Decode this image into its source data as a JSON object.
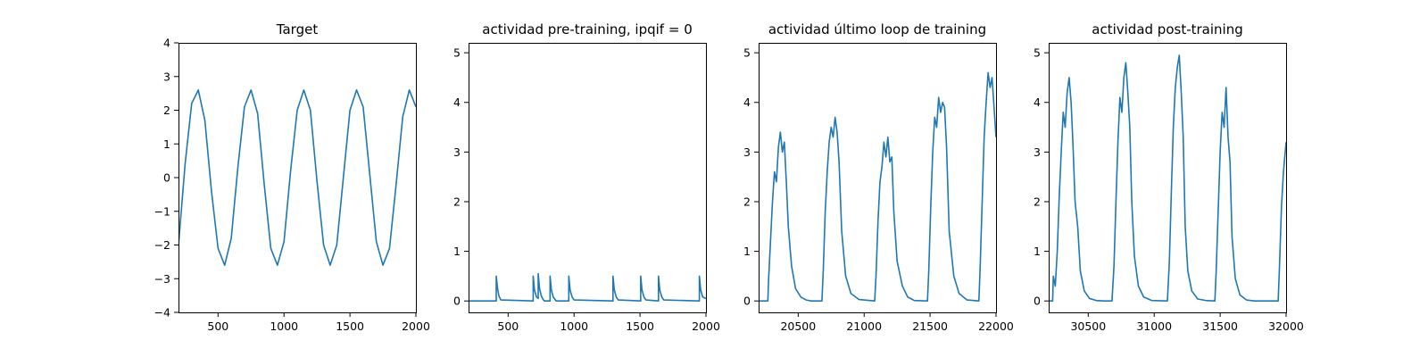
{
  "chart_data": [
    {
      "type": "line",
      "title": "Target",
      "xlabel": "",
      "ylabel": "",
      "xlim": [
        200,
        2000
      ],
      "ylim": [
        -4,
        4
      ],
      "xticks": [
        500,
        1000,
        1500,
        2000
      ],
      "xtick_labels": [
        "500",
        "1000",
        "1500",
        "2000"
      ],
      "yticks": [
        -4,
        -3,
        -2,
        -1,
        0,
        1,
        2,
        3,
        4
      ],
      "ytick_labels": [
        "−4",
        "−3",
        "−2",
        "−1",
        "0",
        "1",
        "2",
        "3",
        "4"
      ],
      "grid": false,
      "series": [
        {
          "x": [
            200,
            250,
            300,
            350,
            400,
            450,
            500,
            550,
            600,
            650,
            700,
            750,
            800,
            850,
            900,
            950,
            1000,
            1050,
            1100,
            1150,
            1200,
            1250,
            1300,
            1350,
            1400,
            1450,
            1500,
            1550,
            1600,
            1650,
            1700,
            1750,
            1800,
            1850,
            1900,
            1950,
            2000
          ],
          "y": [
            -2.0,
            0.4,
            2.2,
            2.6,
            1.7,
            -0.4,
            -2.1,
            -2.6,
            -1.8,
            0.3,
            2.1,
            2.6,
            1.9,
            -0.2,
            -2.1,
            -2.6,
            -1.9,
            0.2,
            2.0,
            2.6,
            2.0,
            -0.1,
            -2.0,
            -2.6,
            -2.0,
            0.0,
            2.0,
            2.6,
            2.1,
            0.1,
            -1.9,
            -2.6,
            -2.1,
            -0.2,
            1.8,
            2.6,
            2.1
          ]
        }
      ]
    },
    {
      "type": "line",
      "title": "actividad pre-training, ipqif = 0",
      "xlabel": "",
      "ylabel": "",
      "xlim": [
        200,
        2000
      ],
      "ylim": [
        -0.23,
        5.2
      ],
      "xticks": [
        500,
        1000,
        1500,
        2000
      ],
      "xtick_labels": [
        "500",
        "1000",
        "1500",
        "2000"
      ],
      "yticks": [
        0,
        1,
        2,
        3,
        4,
        5
      ],
      "ytick_labels": [
        "0",
        "1",
        "2",
        "3",
        "4",
        "5"
      ],
      "grid": false,
      "series": [
        {
          "x": [
            200,
            410,
            410,
            420,
            430,
            445,
            690,
            690,
            700,
            715,
            728,
            728,
            738,
            752,
            765,
            775,
            818,
            818,
            828,
            842,
            855,
            865,
            960,
            960,
            970,
            985,
            1000,
            1295,
            1295,
            1305,
            1320,
            1335,
            1505,
            1505,
            1515,
            1530,
            1545,
            1640,
            1640,
            1650,
            1665,
            1680,
            1950,
            1950,
            1960,
            1975,
            2000
          ],
          "y": [
            0,
            0,
            0.5,
            0.25,
            0.1,
            0.02,
            0,
            0.5,
            0.22,
            0.08,
            0.05,
            0.55,
            0.25,
            0.1,
            0.03,
            0,
            0,
            0.5,
            0.22,
            0.08,
            0.03,
            0,
            0,
            0.5,
            0.22,
            0.08,
            0.02,
            0,
            0.5,
            0.22,
            0.08,
            0.02,
            0,
            0.5,
            0.22,
            0.08,
            0.02,
            0,
            0.5,
            0.22,
            0.08,
            0.02,
            0,
            0.5,
            0.22,
            0.08,
            0.05
          ]
        }
      ]
    },
    {
      "type": "line",
      "title": "actividad último loop de training",
      "xlabel": "",
      "ylabel": "",
      "xlim": [
        20200,
        22000
      ],
      "ylim": [
        -0.23,
        5.2
      ],
      "xticks": [
        20500,
        21000,
        21500,
        22000
      ],
      "xtick_labels": [
        "20500",
        "21000",
        "21500",
        "22000"
      ],
      "yticks": [
        0,
        1,
        2,
        3,
        4,
        5
      ],
      "ytick_labels": [
        "0",
        "1",
        "2",
        "3",
        "4",
        "5"
      ],
      "grid": false,
      "series": [
        {
          "x": [
            20200,
            20270,
            20275,
            20290,
            20305,
            20320,
            20335,
            20350,
            20365,
            20380,
            20395,
            20410,
            20425,
            20450,
            20480,
            20520,
            20560,
            20600,
            20680,
            20690,
            20705,
            20720,
            20735,
            20750,
            20765,
            20780,
            20795,
            20810,
            20830,
            20860,
            20900,
            20960,
            21080,
            21090,
            21105,
            21120,
            21135,
            21150,
            21165,
            21180,
            21195,
            21210,
            21225,
            21250,
            21290,
            21330,
            21380,
            21480,
            21490,
            21505,
            21520,
            21535,
            21550,
            21565,
            21580,
            21595,
            21610,
            21625,
            21645,
            21680,
            21720,
            21780,
            21870,
            21880,
            21895,
            21910,
            21925,
            21940,
            21955,
            21970,
            21985,
            22000
          ],
          "y": [
            0,
            0,
            0.4,
            1.2,
            2.0,
            2.6,
            2.4,
            3.1,
            3.4,
            3.0,
            3.2,
            2.4,
            1.5,
            0.7,
            0.25,
            0.08,
            0.02,
            0,
            0,
            0.6,
            1.8,
            2.6,
            3.2,
            3.5,
            3.3,
            3.7,
            3.4,
            2.8,
            1.4,
            0.5,
            0.15,
            0.03,
            0,
            0.5,
            1.6,
            2.4,
            2.7,
            3.2,
            2.9,
            3.3,
            2.8,
            2.9,
            1.8,
            0.8,
            0.3,
            0.08,
            0.01,
            0,
            0.6,
            1.9,
            3.0,
            3.7,
            3.5,
            4.1,
            3.8,
            4.0,
            3.9,
            3.1,
            1.4,
            0.5,
            0.15,
            0.02,
            0,
            0.7,
            2.0,
            3.3,
            4.0,
            4.6,
            4.3,
            4.5,
            3.9,
            3.3
          ]
        }
      ]
    },
    {
      "type": "line",
      "title": "actividad post-training",
      "xlabel": "",
      "ylabel": "",
      "xlim": [
        30200,
        32000
      ],
      "ylim": [
        -0.23,
        5.2
      ],
      "xticks": [
        30500,
        31000,
        31500,
        32000
      ],
      "xtick_labels": [
        "30500",
        "31000",
        "31500",
        "32000"
      ],
      "yticks": [
        0,
        1,
        2,
        3,
        4,
        5
      ],
      "ytick_labels": [
        "0",
        "1",
        "2",
        "3",
        "4",
        "5"
      ],
      "grid": false,
      "series": [
        {
          "x": [
            30200,
            30230,
            30235,
            30250,
            30265,
            30280,
            30295,
            30310,
            30325,
            30340,
            30355,
            30370,
            30385,
            30400,
            30420,
            30440,
            30470,
            30510,
            30560,
            30620,
            30680,
            30695,
            30710,
            30725,
            30740,
            30755,
            30770,
            30785,
            30800,
            30815,
            30830,
            30850,
            30880,
            30920,
            30980,
            31100,
            31115,
            31130,
            31145,
            31160,
            31175,
            31190,
            31205,
            31220,
            31235,
            31255,
            31285,
            31330,
            31390,
            31460,
            31470,
            31485,
            31500,
            31515,
            31530,
            31545,
            31560,
            31575,
            31590,
            31615,
            31650,
            31700,
            31760,
            31940,
            31950,
            31965,
            31980,
            32000
          ],
          "y": [
            0,
            0,
            0.5,
            0.3,
            1.0,
            2.1,
            3.0,
            3.8,
            3.5,
            4.2,
            4.5,
            4.0,
            3.1,
            2.0,
            1.5,
            0.6,
            0.2,
            0.05,
            0.01,
            0,
            0,
            0.7,
            2.0,
            3.2,
            4.1,
            3.8,
            4.5,
            4.8,
            4.2,
            3.5,
            2.0,
            0.9,
            0.3,
            0.08,
            0.01,
            0,
            0.8,
            2.2,
            3.5,
            4.3,
            4.7,
            4.95,
            4.2,
            3.3,
            1.5,
            0.6,
            0.2,
            0.04,
            0.01,
            0,
            0.6,
            1.8,
            3.0,
            3.8,
            3.5,
            4.3,
            3.3,
            2.8,
            1.3,
            0.45,
            0.12,
            0.02,
            0,
            0,
            0.7,
            1.9,
            2.6,
            3.2
          ]
        }
      ]
    }
  ],
  "style": {
    "line_color": "#1f77b4",
    "axis_color": "#000000",
    "background": "#ffffff"
  }
}
